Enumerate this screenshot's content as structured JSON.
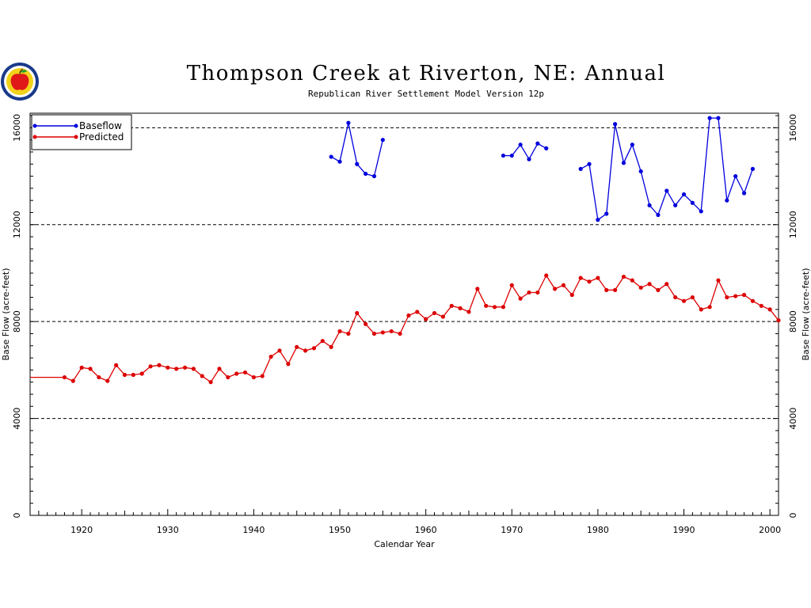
{
  "chart_data": {
    "type": "line",
    "title": "Thompson Creek at Riverton, NE: Annual",
    "subtitle": "Republican River Settlement Model Version 12p",
    "xlabel": "Calendar Year",
    "ylabel": "Base Flow (acre-feet)",
    "xlim": [
      1914,
      2001
    ],
    "ylim": [
      0,
      16600
    ],
    "x_ticks": [
      1920,
      1930,
      1940,
      1950,
      1960,
      1970,
      1980,
      1990,
      2000
    ],
    "y_ticks": [
      0,
      4000,
      8000,
      12000,
      16000
    ],
    "grid_y": [
      4000,
      8000,
      12000,
      16000
    ],
    "legend_position": "top-left",
    "series": [
      {
        "name": "Baseflow",
        "color": "#0000dd",
        "segments": [
          [
            [
              1949,
              14800
            ],
            [
              1950,
              14600
            ],
            [
              1951,
              16200
            ],
            [
              1952,
              14500
            ],
            [
              1953,
              14100
            ],
            [
              1954,
              14000
            ],
            [
              1955,
              15500
            ]
          ],
          [
            [
              1969,
              14850
            ],
            [
              1970,
              14850
            ],
            [
              1971,
              15300
            ],
            [
              1972,
              14700
            ],
            [
              1973,
              15350
            ],
            [
              1974,
              15150
            ]
          ],
          [
            [
              1978,
              14300
            ],
            [
              1979,
              14500
            ],
            [
              1980,
              12200
            ],
            [
              1981,
              12450
            ],
            [
              1982,
              16150
            ],
            [
              1983,
              14550
            ],
            [
              1984,
              15300
            ],
            [
              1985,
              14200
            ],
            [
              1986,
              12800
            ],
            [
              1987,
              12400
            ],
            [
              1988,
              13400
            ],
            [
              1989,
              12800
            ],
            [
              1990,
              13250
            ],
            [
              1991,
              12900
            ],
            [
              1992,
              12550
            ],
            [
              1993,
              16400
            ],
            [
              1994,
              16400
            ],
            [
              1995,
              13000
            ],
            [
              1996,
              14000
            ],
            [
              1997,
              13300
            ],
            [
              1998,
              14300
            ]
          ]
        ]
      },
      {
        "name": "Predicted",
        "color": "#dd0000",
        "segments": [
          [
            [
              1914,
              5700
            ],
            [
              1918,
              5700
            ],
            [
              1919,
              5550
            ],
            [
              1920,
              6100
            ],
            [
              1921,
              6050
            ],
            [
              1922,
              5700
            ],
            [
              1923,
              5550
            ],
            [
              1924,
              6200
            ],
            [
              1925,
              5800
            ],
            [
              1926,
              5800
            ],
            [
              1927,
              5850
            ],
            [
              1928,
              6150
            ],
            [
              1929,
              6200
            ],
            [
              1930,
              6100
            ],
            [
              1931,
              6050
            ],
            [
              1932,
              6100
            ],
            [
              1933,
              6050
            ],
            [
              1934,
              5750
            ],
            [
              1935,
              5500
            ],
            [
              1936,
              6050
            ],
            [
              1937,
              5700
            ],
            [
              1938,
              5850
            ],
            [
              1939,
              5900
            ],
            [
              1940,
              5700
            ],
            [
              1941,
              5750
            ],
            [
              1942,
              6550
            ],
            [
              1943,
              6800
            ],
            [
              1944,
              6250
            ],
            [
              1945,
              6950
            ],
            [
              1946,
              6800
            ],
            [
              1947,
              6900
            ],
            [
              1948,
              7200
            ],
            [
              1949,
              6950
            ],
            [
              1950,
              7600
            ],
            [
              1951,
              7500
            ],
            [
              1952,
              8350
            ],
            [
              1953,
              7900
            ],
            [
              1954,
              7500
            ],
            [
              1955,
              7550
            ],
            [
              1956,
              7600
            ],
            [
              1957,
              7500
            ],
            [
              1958,
              8250
            ],
            [
              1959,
              8400
            ],
            [
              1960,
              8100
            ],
            [
              1961,
              8350
            ],
            [
              1962,
              8200
            ],
            [
              1963,
              8650
            ],
            [
              1964,
              8550
            ],
            [
              1965,
              8400
            ],
            [
              1966,
              9350
            ],
            [
              1967,
              8650
            ],
            [
              1968,
              8600
            ],
            [
              1969,
              8600
            ],
            [
              1970,
              9500
            ],
            [
              1971,
              8950
            ],
            [
              1972,
              9200
            ],
            [
              1973,
              9200
            ],
            [
              1974,
              9900
            ],
            [
              1975,
              9350
            ],
            [
              1976,
              9500
            ],
            [
              1977,
              9100
            ],
            [
              1978,
              9800
            ],
            [
              1979,
              9650
            ],
            [
              1980,
              9800
            ],
            [
              1981,
              9300
            ],
            [
              1982,
              9300
            ],
            [
              1983,
              9850
            ],
            [
              1984,
              9700
            ],
            [
              1985,
              9400
            ],
            [
              1986,
              9550
            ],
            [
              1987,
              9300
            ],
            [
              1988,
              9550
            ],
            [
              1989,
              9000
            ],
            [
              1990,
              8850
            ],
            [
              1991,
              9000
            ],
            [
              1992,
              8500
            ],
            [
              1993,
              8600
            ],
            [
              1994,
              9700
            ],
            [
              1995,
              9000
            ],
            [
              1996,
              9050
            ],
            [
              1997,
              9100
            ],
            [
              1998,
              8850
            ],
            [
              1999,
              8650
            ],
            [
              2000,
              8500
            ],
            [
              2001,
              8050
            ]
          ]
        ]
      }
    ]
  }
}
